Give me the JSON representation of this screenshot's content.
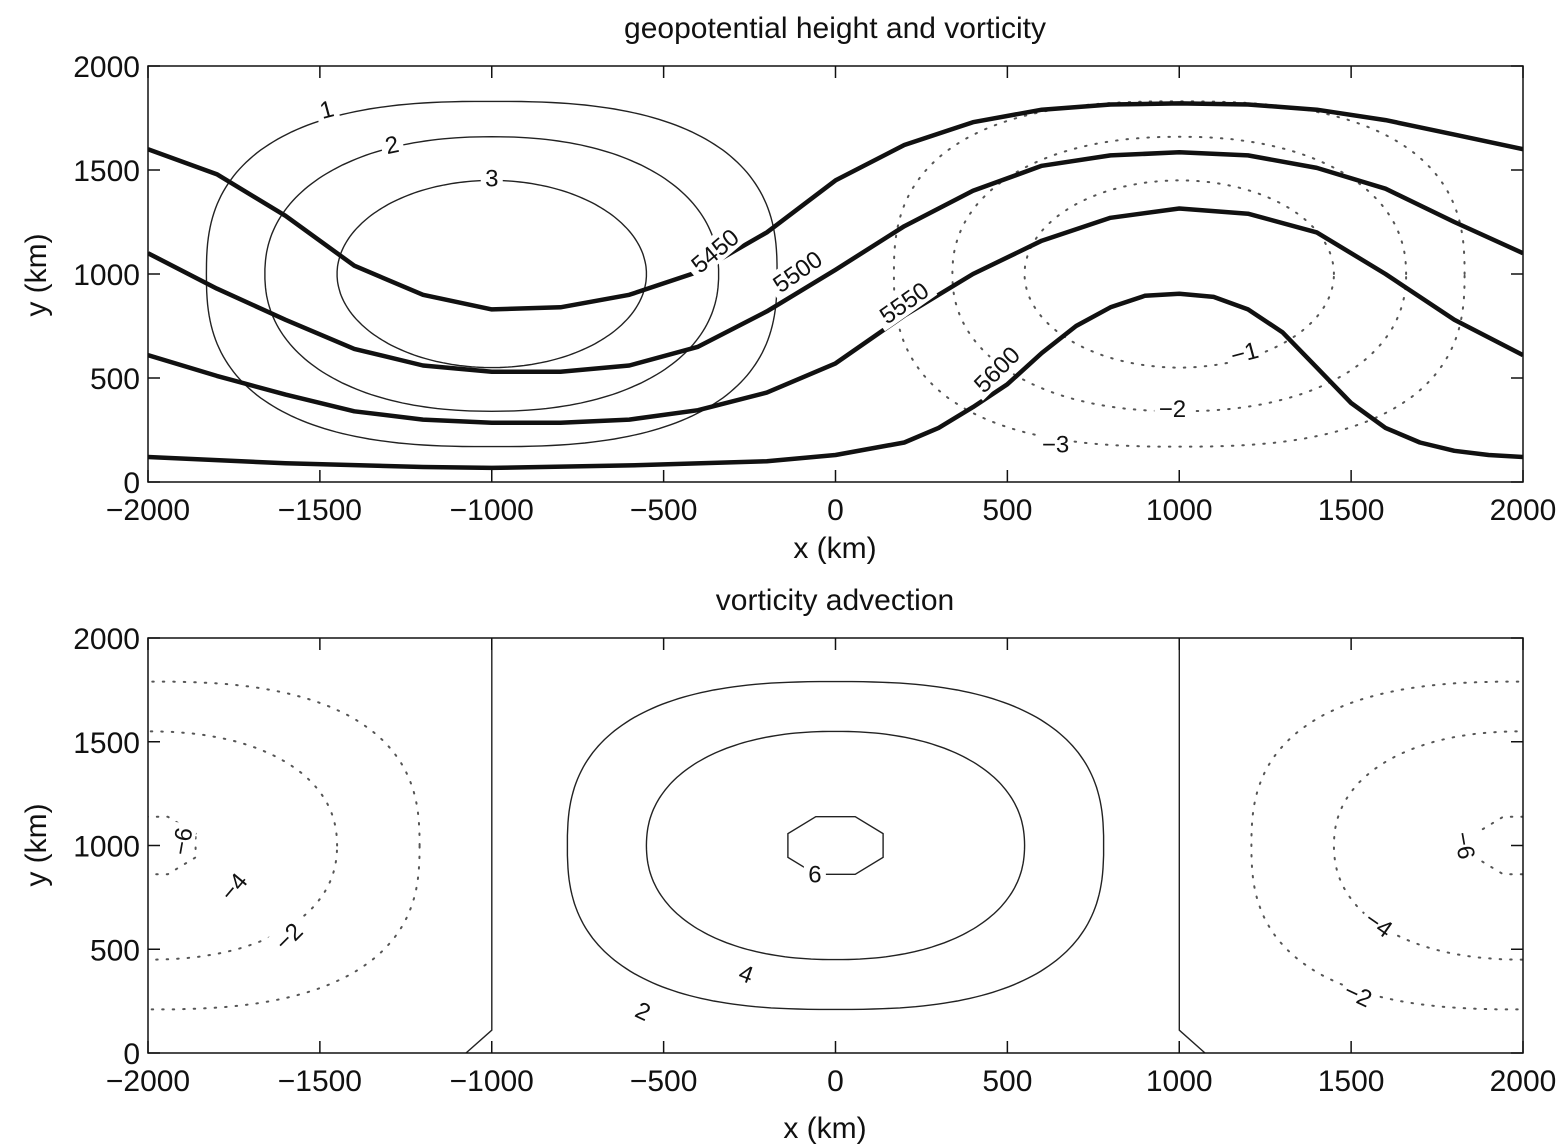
{
  "chart_data": [
    {
      "type": "contour",
      "title": "geopotential height and vorticity",
      "xlabel": "x  (km)",
      "ylabel": "y  (km)",
      "xlim": [
        -2000,
        2000
      ],
      "ylim": [
        0,
        2000
      ],
      "xticks": [
        -2000,
        -1500,
        -1000,
        -500,
        0,
        500,
        1000,
        1500,
        2000
      ],
      "yticks": [
        0,
        500,
        1000,
        1500,
        2000
      ],
      "xtick_labels": [
        "−2000",
        "−1500",
        "−1000",
        "−500",
        "0",
        "500",
        "1000",
        "1500",
        "2000"
      ],
      "ytick_labels": [
        "0",
        "500",
        "1000",
        "1500",
        "2000"
      ],
      "height_contours": [
        {
          "label": "5450",
          "points": [
            [
              -2000,
              1600
            ],
            [
              -1800,
              1480
            ],
            [
              -1600,
              1280
            ],
            [
              -1400,
              1040
            ],
            [
              -1200,
              900
            ],
            [
              -1000,
              830
            ],
            [
              -800,
              840
            ],
            [
              -600,
              900
            ],
            [
              -400,
              1010
            ],
            [
              -200,
              1200
            ],
            [
              0,
              1450
            ],
            [
              200,
              1620
            ],
            [
              400,
              1730
            ],
            [
              600,
              1790
            ],
            [
              800,
              1815
            ],
            [
              1000,
              1820
            ],
            [
              1200,
              1815
            ],
            [
              1400,
              1790
            ],
            [
              1600,
              1740
            ],
            [
              1800,
              1670
            ],
            [
              2000,
              1600
            ]
          ]
        },
        {
          "label": "5500",
          "points": [
            [
              -2000,
              1100
            ],
            [
              -1800,
              930
            ],
            [
              -1600,
              780
            ],
            [
              -1400,
              640
            ],
            [
              -1200,
              560
            ],
            [
              -1000,
              530
            ],
            [
              -800,
              530
            ],
            [
              -600,
              560
            ],
            [
              -400,
              650
            ],
            [
              -200,
              820
            ],
            [
              0,
              1020
            ],
            [
              200,
              1230
            ],
            [
              400,
              1400
            ],
            [
              600,
              1520
            ],
            [
              800,
              1570
            ],
            [
              1000,
              1585
            ],
            [
              1200,
              1570
            ],
            [
              1400,
              1510
            ],
            [
              1600,
              1410
            ],
            [
              1800,
              1250
            ],
            [
              2000,
              1100
            ]
          ]
        },
        {
          "label": "5550",
          "points": [
            [
              -2000,
              610
            ],
            [
              -1800,
              510
            ],
            [
              -1600,
              420
            ],
            [
              -1400,
              340
            ],
            [
              -1200,
              300
            ],
            [
              -1000,
              285
            ],
            [
              -800,
              285
            ],
            [
              -600,
              300
            ],
            [
              -400,
              345
            ],
            [
              -200,
              430
            ],
            [
              0,
              570
            ],
            [
              200,
              800
            ],
            [
              400,
              1000
            ],
            [
              600,
              1160
            ],
            [
              800,
              1270
            ],
            [
              1000,
              1315
            ],
            [
              1200,
              1290
            ],
            [
              1400,
              1200
            ],
            [
              1600,
              1000
            ],
            [
              1800,
              780
            ],
            [
              2000,
              610
            ]
          ]
        },
        {
          "label": "5600",
          "points": [
            [
              -2000,
              120
            ],
            [
              -1600,
              90
            ],
            [
              -1200,
              72
            ],
            [
              -1000,
              68
            ],
            [
              -600,
              80
            ],
            [
              -200,
              100
            ],
            [
              0,
              130
            ],
            [
              200,
              190
            ],
            [
              300,
              260
            ],
            [
              400,
              360
            ],
            [
              500,
              470
            ],
            [
              600,
              620
            ],
            [
              700,
              750
            ],
            [
              800,
              840
            ],
            [
              900,
              895
            ],
            [
              1000,
              905
            ],
            [
              1100,
              890
            ],
            [
              1200,
              830
            ],
            [
              1300,
              720
            ],
            [
              1400,
              550
            ],
            [
              1500,
              380
            ],
            [
              1600,
              260
            ],
            [
              1700,
              190
            ],
            [
              1800,
              150
            ],
            [
              1900,
              130
            ],
            [
              2000,
              120
            ]
          ]
        }
      ],
      "vorticity_contours": [
        {
          "label": "1",
          "center": [
            -1000,
            1000
          ],
          "rx": 830,
          "ry": 830,
          "p": 2.6
        },
        {
          "label": "2",
          "center": [
            -1000,
            1000
          ],
          "rx": 660,
          "ry": 660,
          "p": 2.2
        },
        {
          "label": "3",
          "center": [
            -1000,
            1000
          ],
          "rx": 450,
          "ry": 450,
          "p": 2.0
        },
        {
          "label": "−1",
          "center": [
            1000,
            1000
          ],
          "rx": 830,
          "ry": 830,
          "p": 2.6
        },
        {
          "label": "−2",
          "center": [
            1000,
            1000
          ],
          "rx": 660,
          "ry": 660,
          "p": 2.2
        },
        {
          "label": "−3",
          "center": [
            1000,
            1000
          ],
          "rx": 450,
          "ry": 450,
          "p": 2.0
        }
      ]
    },
    {
      "type": "contour",
      "title": "vorticity advection",
      "xlabel": "x  (km)",
      "ylabel": "y  (km)",
      "xlim": [
        -2000,
        2000
      ],
      "ylim": [
        0,
        2000
      ],
      "xticks": [
        -2000,
        -1500,
        -1000,
        -500,
        0,
        500,
        1000,
        1500,
        2000
      ],
      "yticks": [
        0,
        500,
        1000,
        1500,
        2000
      ],
      "xtick_labels": [
        "−2000",
        "−1500",
        "−1000",
        "−500",
        "0",
        "500",
        "1000",
        "1500",
        "2000"
      ],
      "ytick_labels": [
        "0",
        "500",
        "1000",
        "1500",
        "2000"
      ],
      "contours": [
        {
          "label": "2",
          "center": [
            0,
            1000
          ],
          "rx": 780,
          "ry": 790,
          "p": 2.6
        },
        {
          "label": "4",
          "center": [
            0,
            1000
          ],
          "rx": 550,
          "ry": 550,
          "p": 2.2
        },
        {
          "label": "6",
          "center": [
            0,
            1000
          ],
          "rx": 150,
          "ry": 150,
          "p": 1.0
        },
        {
          "label": "−2",
          "center": [
            -2000,
            1000
          ],
          "rx": 790,
          "ry": 790,
          "p": 2.6
        },
        {
          "label": "−4",
          "center": [
            -2000,
            1000
          ],
          "rx": 550,
          "ry": 550,
          "p": 2.2
        },
        {
          "label": "−6",
          "center": [
            -2000,
            1000
          ],
          "rx": 150,
          "ry": 150,
          "p": 1.0
        },
        {
          "label": "−2",
          "center": [
            2000,
            1000
          ],
          "rx": 790,
          "ry": 790,
          "p": 2.6
        },
        {
          "label": "−4",
          "center": [
            2000,
            1000
          ],
          "rx": 550,
          "ry": 550,
          "p": 2.2
        },
        {
          "label": "−6",
          "center": [
            2000,
            1000
          ],
          "rx": 150,
          "ry": 150,
          "p": 1.0
        }
      ],
      "zero_lines": [
        {
          "points": [
            [
              -1075,
              0
            ],
            [
              -1000,
              110
            ],
            [
              -1000,
              2000
            ]
          ]
        },
        {
          "points": [
            [
              1075,
              0
            ],
            [
              1000,
              110
            ],
            [
              1000,
              2000
            ]
          ]
        }
      ]
    }
  ]
}
